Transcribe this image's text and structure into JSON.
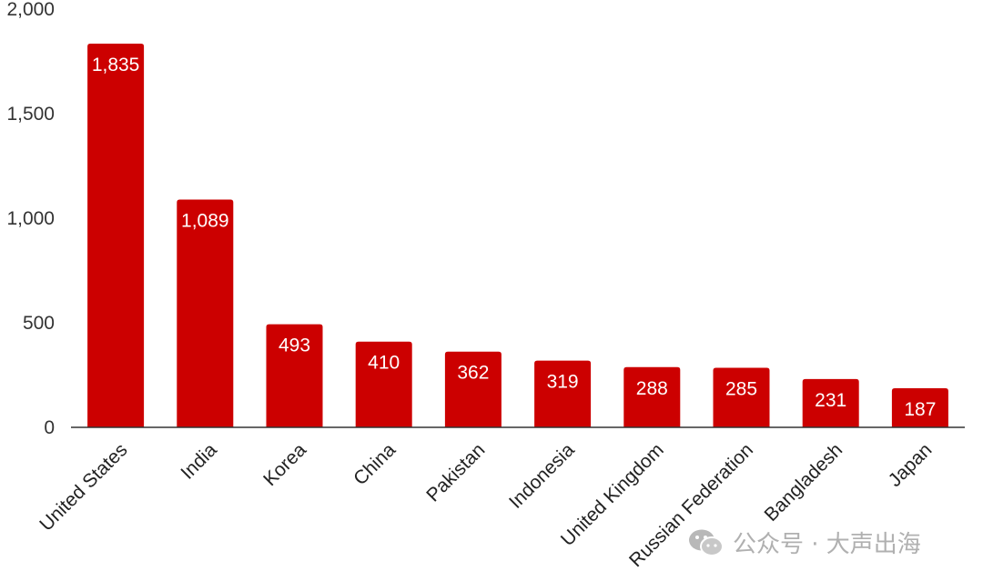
{
  "chart_data": {
    "type": "bar",
    "categories": [
      "United States",
      "India",
      "Korea",
      "China",
      "Pakistan",
      "Indonesia",
      "United Kingdom",
      "Russian Federation",
      "Bangladesh",
      "Japan"
    ],
    "values": [
      1835,
      1089,
      493,
      410,
      362,
      319,
      288,
      285,
      231,
      187
    ],
    "value_labels": [
      "1,835",
      "1,089",
      "493",
      "410",
      "362",
      "319",
      "288",
      "285",
      "231",
      "187"
    ],
    "yticks": [
      0,
      500,
      1000,
      1500,
      2000
    ],
    "ytick_labels": [
      "0",
      "500",
      "1,000",
      "1,500",
      "2,000"
    ],
    "ylim": [
      0,
      2000
    ],
    "grid": false,
    "bar_color": "#cc0000",
    "title": "",
    "xlabel": "",
    "ylabel": ""
  },
  "watermark": {
    "text": "公众号 · 大声出海",
    "icon": "wechat-icon"
  }
}
